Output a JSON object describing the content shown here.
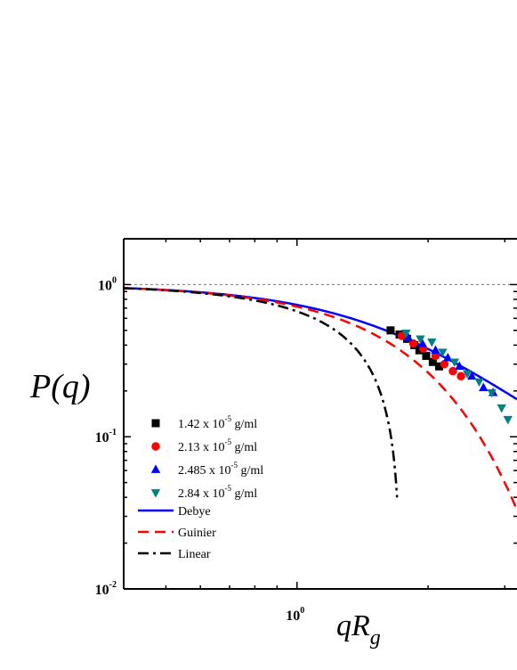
{
  "chart_data": {
    "type": "scatter",
    "title": "",
    "xlabel": {
      "main": "qR",
      "sub": "g"
    },
    "ylabel": "P(q)",
    "x_scale": "log",
    "y_scale": "log",
    "xlim": [
      0.4,
      3.2
    ],
    "ylim": [
      0.01,
      2.0
    ],
    "reference_line_y": 1.0,
    "x_ticks": [
      {
        "value": 1,
        "base": "10",
        "exp": "0"
      }
    ],
    "y_ticks": [
      {
        "value": 1,
        "base": "10",
        "exp": "0"
      },
      {
        "value": 0.1,
        "base": "10",
        "exp": "-1"
      },
      {
        "value": 0.01,
        "base": "10",
        "exp": "-2"
      }
    ],
    "legend_position": "lower-left",
    "series": [
      {
        "name_pre": "1.42 x 10",
        "name_exp": "-5",
        "name_post": " g/ml",
        "marker": "square",
        "color": "#000000",
        "points": [
          [
            1.64,
            0.5
          ],
          [
            1.72,
            0.47
          ],
          [
            1.79,
            0.44
          ],
          [
            1.86,
            0.4
          ],
          [
            1.91,
            0.37
          ],
          [
            1.98,
            0.34
          ],
          [
            2.05,
            0.31
          ],
          [
            2.12,
            0.29
          ]
        ]
      },
      {
        "name_pre": "2.13 x 10",
        "name_exp": "-5",
        "name_post": " g/ml",
        "marker": "circle",
        "color": "#ff0000",
        "points": [
          [
            1.74,
            0.46
          ],
          [
            1.85,
            0.41
          ],
          [
            1.95,
            0.38
          ],
          [
            2.08,
            0.34
          ],
          [
            2.18,
            0.3
          ],
          [
            2.28,
            0.27
          ],
          [
            2.38,
            0.25
          ]
        ]
      },
      {
        "name_pre": "2.485 x 10",
        "name_exp": "-5",
        "name_post": " g/ml",
        "marker": "triangle-up",
        "color": "#0000ff",
        "points": [
          [
            1.8,
            0.45
          ],
          [
            1.94,
            0.41
          ],
          [
            2.08,
            0.37
          ],
          [
            2.22,
            0.33
          ],
          [
            2.36,
            0.29
          ],
          [
            2.52,
            0.25
          ],
          [
            2.68,
            0.21
          ],
          [
            2.82,
            0.195
          ]
        ]
      },
      {
        "name_pre": "2.84 x 10",
        "name_exp": "-5",
        "name_post": " g/ml",
        "marker": "triangle-down",
        "color": "#008080",
        "points": [
          [
            1.78,
            0.48
          ],
          [
            1.92,
            0.44
          ],
          [
            2.04,
            0.42
          ],
          [
            2.16,
            0.36
          ],
          [
            2.3,
            0.31
          ],
          [
            2.46,
            0.26
          ],
          [
            2.62,
            0.23
          ],
          [
            2.8,
            0.195
          ],
          [
            2.95,
            0.155
          ],
          [
            3.05,
            0.13
          ]
        ]
      },
      {
        "name": "Debye",
        "line": "solid",
        "color": "#0000ff"
      },
      {
        "name": "Guinier",
        "line": "dashed",
        "color": "#ff0000"
      },
      {
        "name": "Linear",
        "line": "dashdot",
        "color": "#000000"
      }
    ]
  }
}
